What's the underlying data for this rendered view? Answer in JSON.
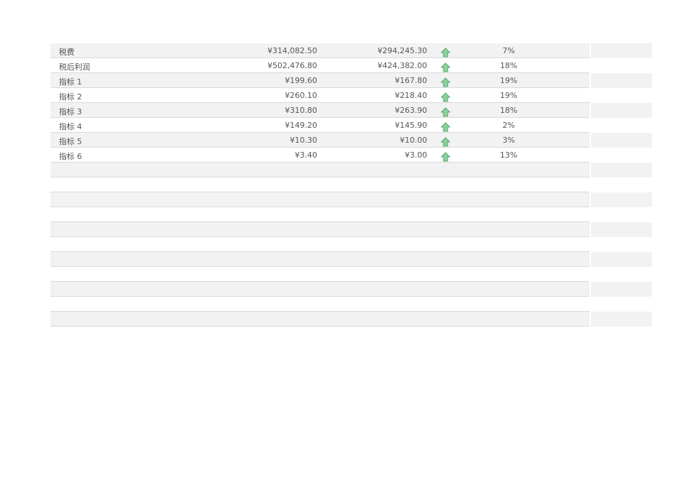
{
  "rows": [
    {
      "label": "税费",
      "current": "¥314,082.50",
      "previous": "¥294,245.30",
      "trend_icon": "arrow-up-icon",
      "change": "7%"
    },
    {
      "label": "税后利润",
      "current": "¥502,476.80",
      "previous": "¥424,382.00",
      "trend_icon": "arrow-up-icon",
      "change": "18%"
    },
    {
      "label": "指标 1",
      "current": "¥199.60",
      "previous": "¥167.80",
      "trend_icon": "arrow-up-icon",
      "change": "19%"
    },
    {
      "label": "指标 2",
      "current": "¥260.10",
      "previous": "¥218.40",
      "trend_icon": "arrow-up-icon",
      "change": "19%"
    },
    {
      "label": "指标 3",
      "current": "¥310.80",
      "previous": "¥263.90",
      "trend_icon": "arrow-up-icon",
      "change": "18%"
    },
    {
      "label": "指标 4",
      "current": "¥149.20",
      "previous": "¥145.90",
      "trend_icon": "arrow-up-icon",
      "change": "2%"
    },
    {
      "label": "指标 5",
      "current": "¥10.30",
      "previous": "¥10.00",
      "trend_icon": "arrow-up-icon",
      "change": "3%"
    },
    {
      "label": "指标 6",
      "current": "¥3.40",
      "previous": "¥3.00",
      "trend_icon": "arrow-up-icon",
      "change": "13%"
    }
  ],
  "colors": {
    "arrow_fill": "#8fd19e",
    "arrow_stroke": "#3c9a54",
    "band": "#f2f2f2"
  }
}
